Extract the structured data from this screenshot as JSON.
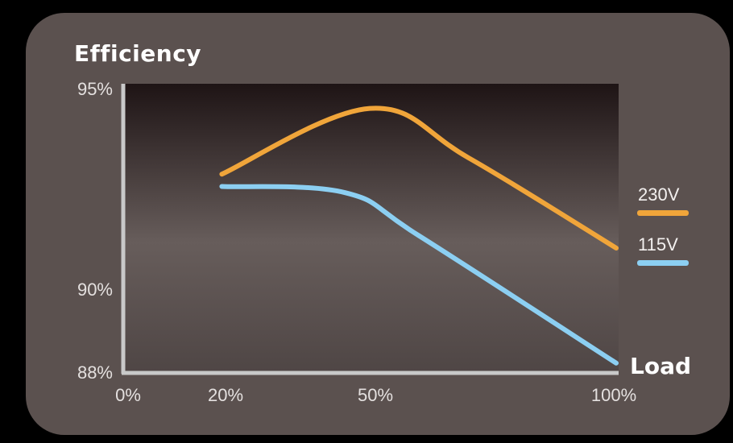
{
  "chart_data": {
    "type": "line",
    "title": "Efficiency",
    "xlabel": "Load",
    "ylabel": "",
    "x_ticks": [
      "0%",
      "20%",
      "50%",
      "100%"
    ],
    "y_ticks": [
      "95%",
      "90%",
      "88%"
    ],
    "series": [
      {
        "name": "230V",
        "color": "#f0a53a",
        "points": [
          [
            20,
            92.8
          ],
          [
            50,
            94.4
          ],
          [
            70,
            93.2
          ],
          [
            100,
            91.0
          ]
        ]
      },
      {
        "name": "115V",
        "color": "#8ccff2",
        "points": [
          [
            20,
            92.5
          ],
          [
            45,
            92.35
          ],
          [
            60,
            91.3
          ],
          [
            100,
            88.2
          ]
        ]
      }
    ],
    "grid": false,
    "legend_position": "right"
  }
}
